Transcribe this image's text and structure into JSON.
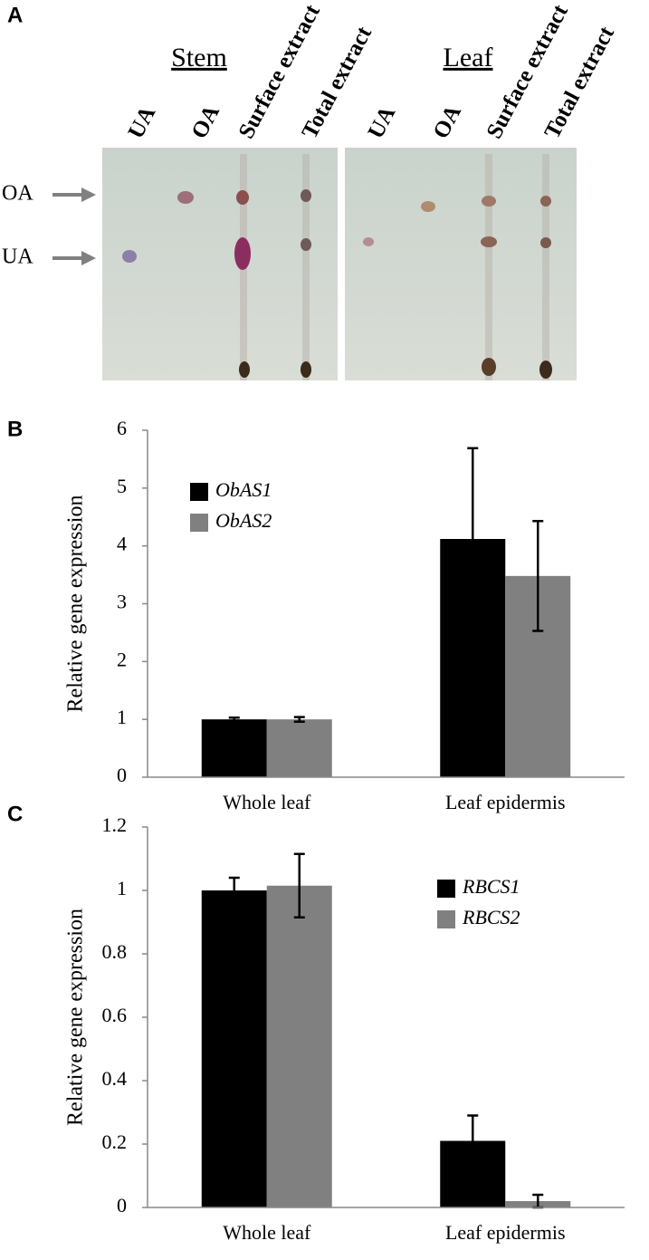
{
  "panel_a": {
    "panel_label": "A",
    "groups": [
      {
        "name": "Stem",
        "lanes": [
          "UA",
          "OA",
          "Surface extract",
          "Total extract"
        ]
      },
      {
        "name": "Leaf",
        "lanes": [
          "UA",
          "OA",
          "Surface extract",
          "Total extract"
        ]
      }
    ],
    "markers": [
      "OA",
      "UA"
    ]
  },
  "chart_data": [
    {
      "type": "bar",
      "panel_label": "B",
      "y_label": "Relative gene expression",
      "categories": [
        "Whole leaf",
        "Leaf epidermis"
      ],
      "series": [
        {
          "name": "ObAS1",
          "color": "#000000",
          "values": [
            1.0,
            4.12
          ],
          "errors": [
            0.03,
            1.57
          ]
        },
        {
          "name": "ObAS2",
          "color": "#808080",
          "values": [
            1.0,
            3.48
          ],
          "errors": [
            0.04,
            0.95
          ]
        }
      ],
      "ylim": [
        0,
        6
      ],
      "yticks": [
        0,
        1,
        2,
        3,
        4,
        5,
        6
      ],
      "legend": "upper left"
    },
    {
      "type": "bar",
      "panel_label": "C",
      "y_label": "Relative gene expression",
      "categories": [
        "Whole leaf",
        "Leaf epidermis"
      ],
      "series": [
        {
          "name": "RBCS1",
          "color": "#000000",
          "values": [
            1.0,
            0.21
          ],
          "errors": [
            0.04,
            0.08
          ]
        },
        {
          "name": "RBCS2",
          "color": "#808080",
          "values": [
            1.015,
            0.02
          ],
          "errors": [
            0.1,
            0.02
          ]
        }
      ],
      "ylim": [
        0,
        1.2
      ],
      "yticks": [
        0,
        0.2,
        0.4,
        0.6,
        0.8,
        1,
        1.2
      ],
      "legend": "upper right"
    }
  ]
}
